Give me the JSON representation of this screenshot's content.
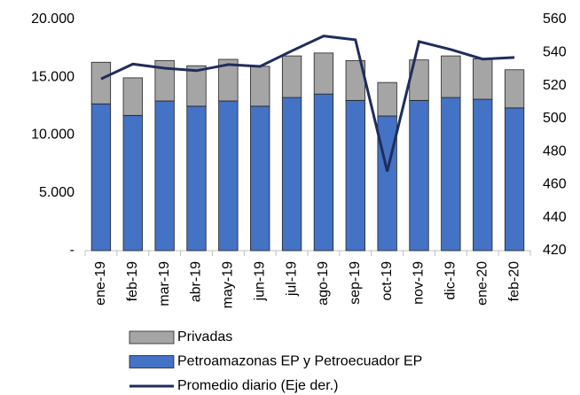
{
  "chart_data": {
    "type": "bar_line",
    "categories": [
      "ene-19",
      "feb-19",
      "mar-19",
      "abr-19",
      "may-19",
      "jun-19",
      "jul-19",
      "ago-19",
      "sep-19",
      "oct-19",
      "nov-19",
      "dic-19",
      "ene-20",
      "feb-20"
    ],
    "series": [
      {
        "name": "Petroamazonas EP y Petroecuador EP",
        "color": "#4472c4",
        "values": [
          12700,
          11700,
          12950,
          12500,
          12950,
          12500,
          13250,
          13550,
          13000,
          11650,
          13000,
          13250,
          13100,
          12350
        ]
      },
      {
        "name": "Privadas",
        "color": "#a5a5a5",
        "values": [
          3600,
          3250,
          3500,
          3500,
          3600,
          3450,
          3600,
          3550,
          3450,
          2900,
          3500,
          3600,
          3500,
          3300
        ]
      },
      {
        "name": "Promedio diario (Eje der.)",
        "color": "#1f2d5c",
        "axis": "y2",
        "values": [
          524,
          533,
          530.5,
          529,
          532.7,
          531.6,
          541,
          550,
          547.7,
          468,
          546.6,
          541.8,
          536,
          537
        ]
      }
    ],
    "ylim": [
      0,
      20000
    ],
    "yticks": [
      {
        "value": 0,
        "label": "-"
      },
      {
        "value": 5000,
        "label": "5.000"
      },
      {
        "value": 10000,
        "label": "10.000"
      },
      {
        "value": 15000,
        "label": "15.000"
      },
      {
        "value": 20000,
        "label": "20.000"
      }
    ],
    "y2lim": [
      420,
      560
    ],
    "y2ticks": [
      420,
      440,
      460,
      480,
      500,
      520,
      540,
      560
    ],
    "legend": "bottom"
  }
}
